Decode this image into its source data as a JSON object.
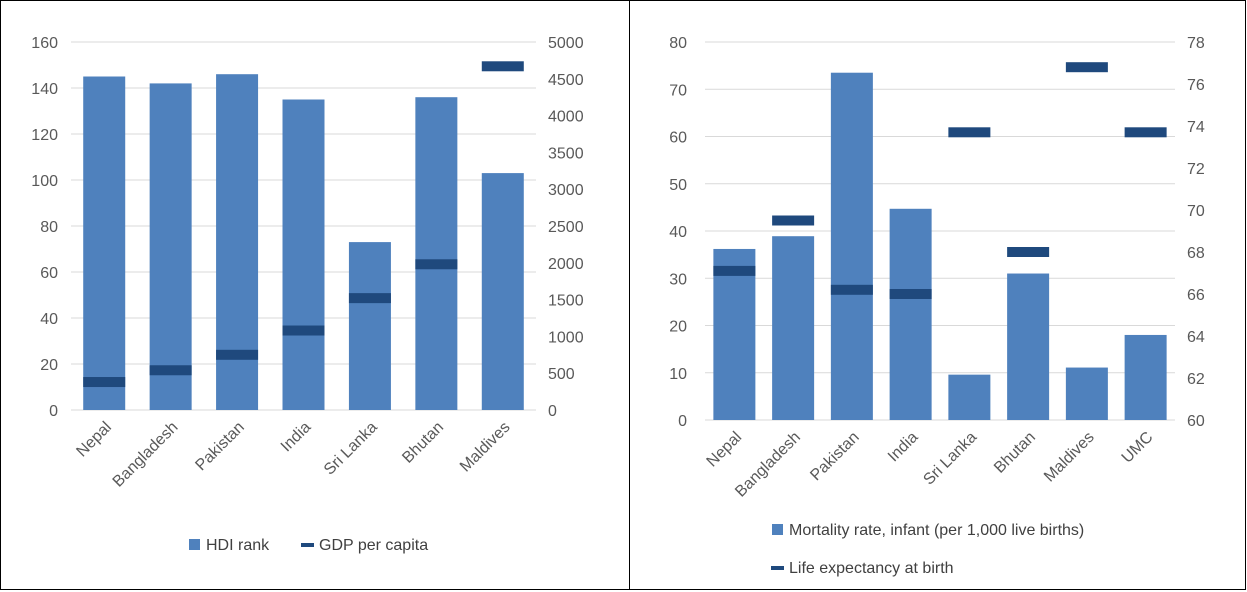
{
  "chart_data": [
    {
      "type": "bar",
      "categories": [
        "Nepal",
        "Bangladesh",
        "Pakistan",
        "India",
        "Sri Lanka",
        "Bhutan",
        "Maldives"
      ],
      "series": [
        {
          "name": "HDI rank",
          "kind": "bar",
          "axis": "left",
          "color": "#4F81BD",
          "values": [
            145,
            142,
            146,
            135,
            73,
            136,
            103
          ]
        },
        {
          "name": "GDP per capita",
          "kind": "dash",
          "axis": "right",
          "color": "#1F497D",
          "values": [
            380,
            540,
            750,
            1080,
            1520,
            1980,
            4670
          ]
        }
      ],
      "ylim": [
        0,
        160
      ],
      "yticks": [
        0,
        20,
        40,
        60,
        80,
        100,
        120,
        140,
        160
      ],
      "y2lim": [
        0,
        5000
      ],
      "y2ticks": [
        0,
        500,
        1000,
        1500,
        2000,
        2500,
        3000,
        3500,
        4000,
        4500,
        5000
      ],
      "grid": true,
      "legend": "bottom"
    },
    {
      "type": "bar",
      "categories": [
        "Nepal",
        "Bangladesh",
        "Pakistan",
        "India",
        "Sri Lanka",
        "Bhutan",
        "Maldives",
        "UMC"
      ],
      "series": [
        {
          "name": "Mortality rate, infant (per 1,000 live births)",
          "kind": "bar",
          "axis": "left",
          "color": "#4F81BD",
          "values": [
            36.2,
            38.9,
            73.5,
            44.7,
            9.6,
            31,
            11.1,
            18
          ]
        },
        {
          "name": "Life expectancy at birth",
          "kind": "dash",
          "axis": "right",
          "color": "#1F497D",
          "values": [
            67.1,
            69.5,
            66.2,
            66,
            73.7,
            68,
            76.8,
            73.7
          ]
        }
      ],
      "ylim": [
        0,
        80
      ],
      "yticks": [
        0,
        10,
        20,
        30,
        40,
        50,
        60,
        70,
        80
      ],
      "y2lim": [
        60,
        78
      ],
      "y2ticks": [
        60,
        62,
        64,
        66,
        68,
        70,
        72,
        74,
        76,
        78
      ],
      "grid": true,
      "legend": "bottom"
    }
  ]
}
